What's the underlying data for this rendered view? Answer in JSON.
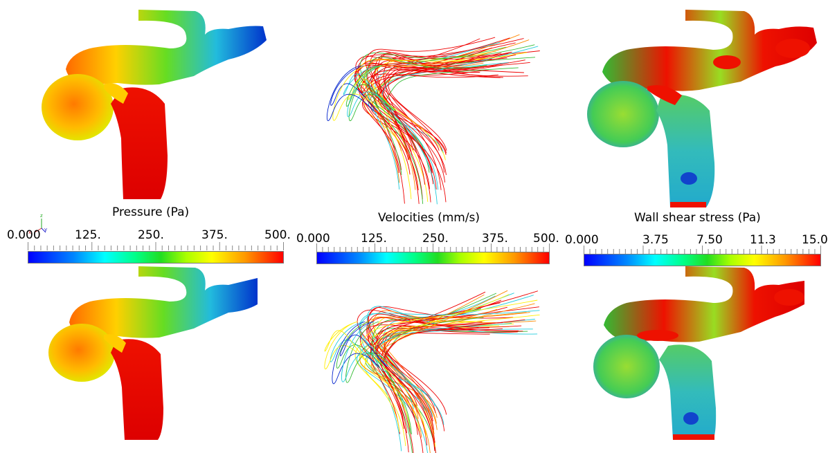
{
  "colors": {
    "blue": "#0022cc",
    "cyan": "#22ccdd",
    "green": "#33bb33",
    "yellow": "#ffee00",
    "orange": "#ff8800",
    "red": "#ee0000"
  },
  "panels": [
    {
      "title": "Pressure (Pa)",
      "ticks": [
        "0.000",
        "125.",
        "250.",
        "375.",
        "500."
      ]
    },
    {
      "title": "Velocities (mm/s)",
      "ticks": [
        "0.000",
        "125.",
        "250.",
        "375.",
        "500."
      ]
    },
    {
      "title": "Wall shear stress (Pa)",
      "ticks": [
        "0.000",
        "3.75",
        "7.50",
        "11.3",
        "15.0"
      ]
    }
  ],
  "axes_triad": {
    "z": "z",
    "x": "x",
    "y": "y"
  }
}
